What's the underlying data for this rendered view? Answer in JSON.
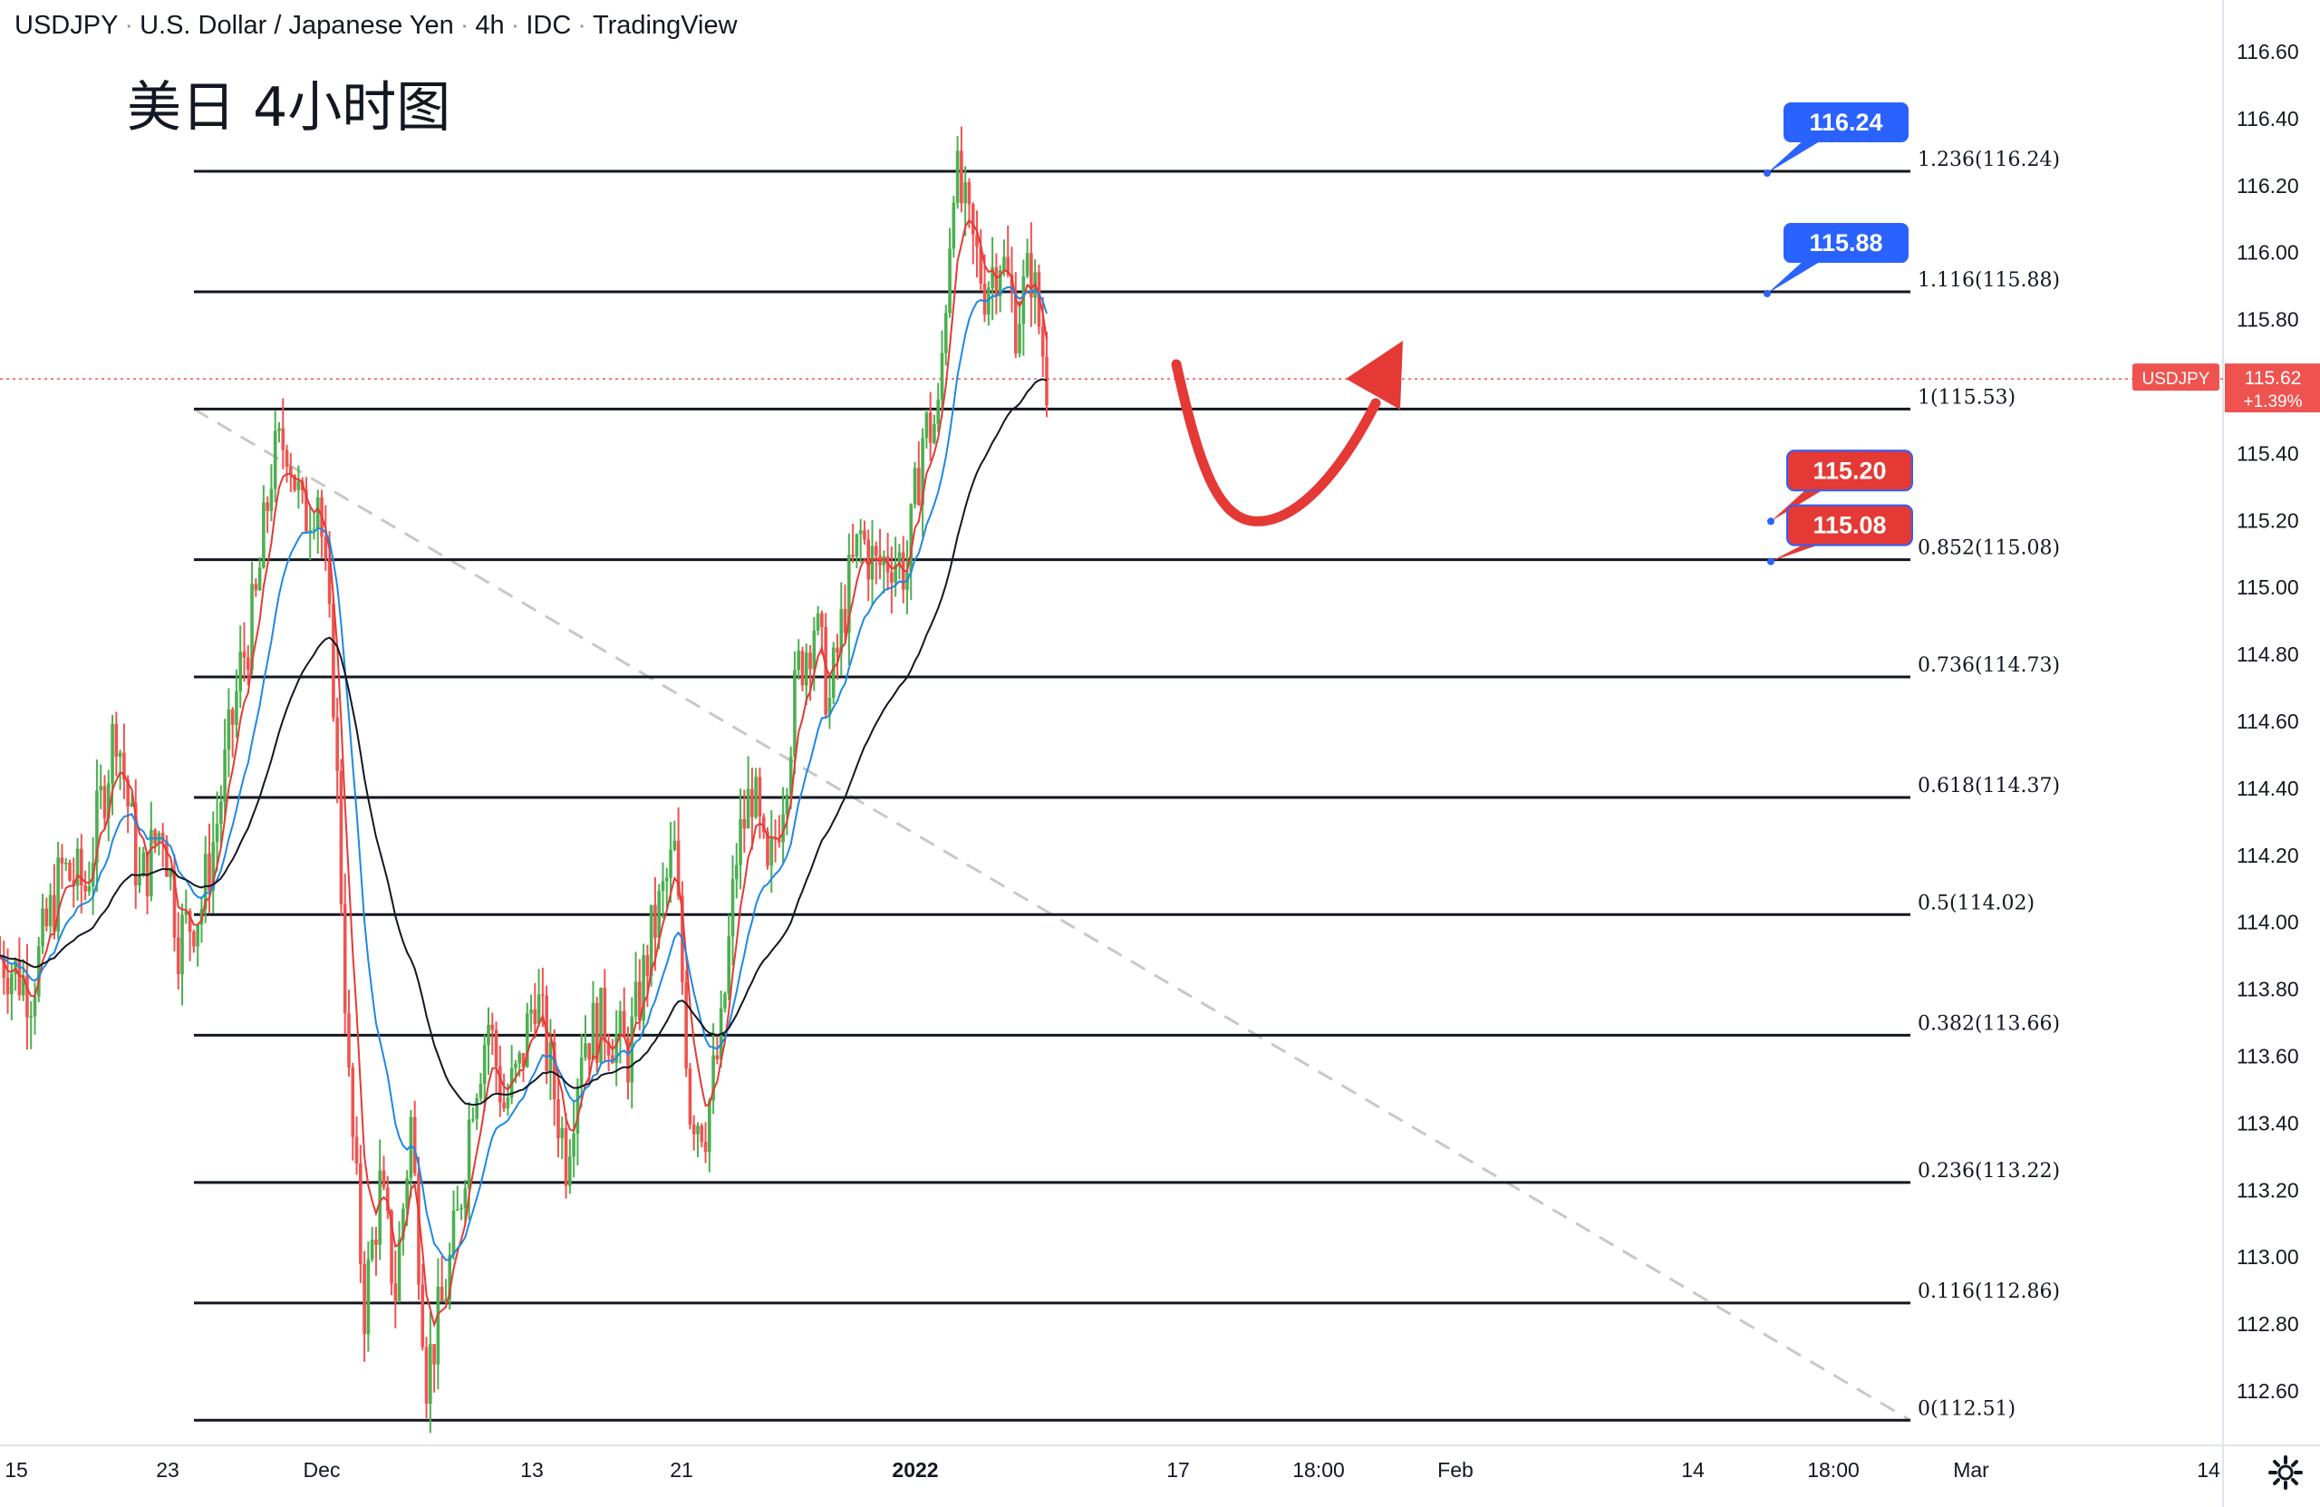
{
  "header": {
    "symbol": "USDJPY",
    "name": "U.S. Dollar / Japanese Yen",
    "interval": "4h",
    "source": "IDC",
    "platform": "TradingView"
  },
  "caption": "美日 4小时图",
  "chart_data": {
    "type": "candlestick",
    "symbol": "USDJPY",
    "price_axis": {
      "ticks": [
        "116.60",
        "116.40",
        "116.20",
        "116.00",
        "115.80",
        "115.40",
        "115.20",
        "115.00",
        "114.80",
        "114.60",
        "114.40",
        "114.20",
        "114.00",
        "113.80",
        "113.60",
        "113.40",
        "113.20",
        "113.00",
        "112.80",
        "112.60"
      ],
      "range": [
        112.4,
        116.66
      ]
    },
    "current_price": {
      "label": "USDJPY",
      "value": "115.62",
      "change": "+1.39%",
      "price": 115.62
    },
    "time_axis": {
      "ticks": [
        "15",
        "23",
        "Dec",
        "13",
        "21",
        "2022",
        "17",
        "18:00",
        "Feb",
        "14",
        "18:00",
        "Mar",
        "14"
      ],
      "bold_ticks": [
        "2022"
      ]
    },
    "fib_levels": [
      {
        "label": "1.236(116.24)",
        "price": 116.24
      },
      {
        "label": "1.116(115.88)",
        "price": 115.88
      },
      {
        "label": "1(115.53)",
        "price": 115.53
      },
      {
        "label": "0.852(115.08)",
        "price": 115.08
      },
      {
        "label": "0.736(114.73)",
        "price": 114.73
      },
      {
        "label": "0.618(114.37)",
        "price": 114.37
      },
      {
        "label": "0.5(114.02)",
        "price": 114.02
      },
      {
        "label": "0.382(113.66)",
        "price": 113.66
      },
      {
        "label": "0.236(113.22)",
        "price": 113.22
      },
      {
        "label": "0.116(112.86)",
        "price": 112.86
      },
      {
        "label": "0(112.51)",
        "price": 112.51
      }
    ],
    "callouts": [
      {
        "text": "116.24",
        "price": 116.24,
        "color": "#2962ff"
      },
      {
        "text": "115.88",
        "price": 115.88,
        "color": "#2962ff"
      },
      {
        "text": "115.20",
        "price": 115.2,
        "color": "#e53935"
      },
      {
        "text": "115.08",
        "price": 115.08,
        "color": "#e53935"
      }
    ],
    "price_path": [
      [
        0,
        113.9
      ],
      [
        8,
        113.8
      ],
      [
        16,
        114.15
      ],
      [
        22,
        114.1
      ],
      [
        30,
        114.6
      ],
      [
        36,
        114.1
      ],
      [
        42,
        114.3
      ],
      [
        46,
        113.95
      ],
      [
        52,
        114.05
      ],
      [
        56,
        114.3
      ],
      [
        62,
        114.75
      ],
      [
        66,
        114.95
      ],
      [
        70,
        115.35
      ],
      [
        74,
        115.45
      ],
      [
        78,
        115.2
      ],
      [
        82,
        115.3
      ],
      [
        86,
        114.7
      ],
      [
        90,
        113.5
      ],
      [
        94,
        112.85
      ],
      [
        98,
        113.2
      ],
      [
        102,
        112.9
      ],
      [
        106,
        113.4
      ],
      [
        110,
        112.65
      ],
      [
        114,
        112.85
      ],
      [
        118,
        113.1
      ],
      [
        122,
        113.5
      ],
      [
        126,
        113.7
      ],
      [
        130,
        113.45
      ],
      [
        134,
        113.55
      ],
      [
        138,
        113.8
      ],
      [
        142,
        113.55
      ],
      [
        146,
        113.3
      ],
      [
        150,
        113.65
      ],
      [
        156,
        113.7
      ],
      [
        162,
        113.6
      ],
      [
        168,
        113.95
      ],
      [
        174,
        114.2
      ],
      [
        178,
        113.45
      ],
      [
        182,
        113.4
      ],
      [
        186,
        113.65
      ],
      [
        190,
        114.2
      ],
      [
        194,
        114.4
      ],
      [
        198,
        114.1
      ],
      [
        202,
        114.4
      ],
      [
        206,
        114.75
      ],
      [
        210,
        114.9
      ],
      [
        214,
        114.65
      ],
      [
        218,
        114.95
      ],
      [
        222,
        115.15
      ],
      [
        226,
        115.05
      ],
      [
        230,
        115.1
      ],
      [
        234,
        115.05
      ],
      [
        238,
        115.45
      ],
      [
        242,
        115.5
      ],
      [
        246,
        116.25
      ],
      [
        250,
        116.05
      ],
      [
        254,
        115.9
      ],
      [
        258,
        116.0
      ],
      [
        262,
        115.8
      ],
      [
        266,
        115.95
      ],
      [
        270,
        115.62
      ]
    ],
    "moving_averages": [
      {
        "color": "#e53935",
        "period": "fast"
      },
      {
        "color": "#1e88e5",
        "period": "medium"
      },
      {
        "color": "#131722",
        "period": "slow"
      }
    ],
    "trendline": {
      "style": "dashed",
      "color": "#c8c8c8",
      "from": 115.53,
      "to": 112.51
    },
    "forecast_arrow": {
      "color": "#e53935",
      "shape": "down-then-up"
    },
    "candle_colors": {
      "up": "#4caf50",
      "down": "#ef5350"
    }
  }
}
